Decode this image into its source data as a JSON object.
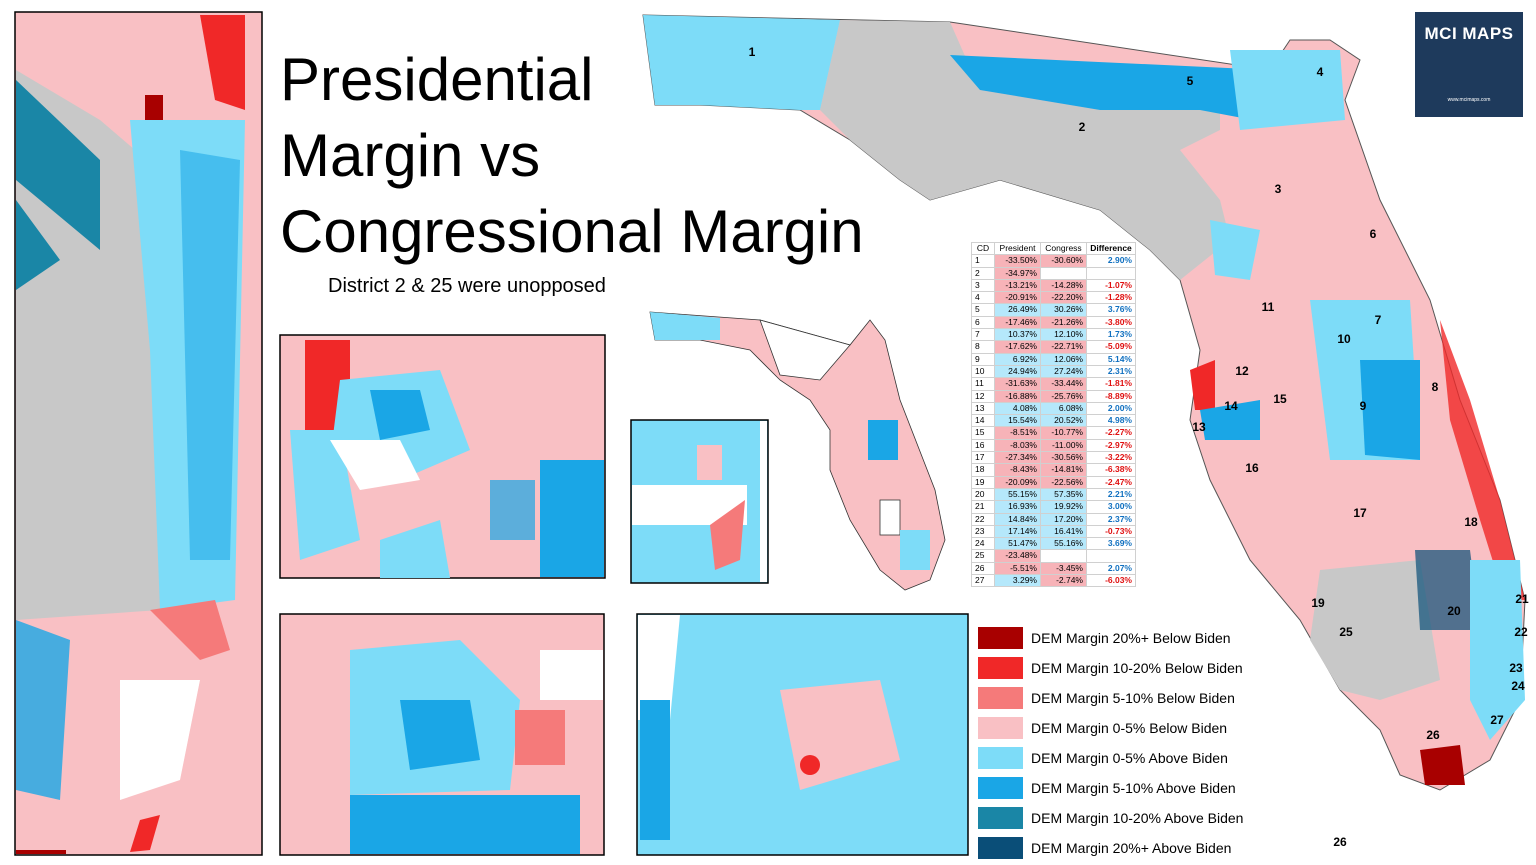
{
  "header": {
    "title_lines": [
      "Presidential",
      "Margin vs",
      "Congressional Margin"
    ],
    "subtitle": "District 2 & 25 were unopposed"
  },
  "logo": {
    "name": "MCI MAPS",
    "url": "www.mcimaps.com"
  },
  "table": {
    "columns": [
      "CD",
      "President",
      "Congress",
      "Difference"
    ],
    "rows": [
      [
        1,
        "-33.50%",
        "-30.60%",
        "2.90%"
      ],
      [
        2,
        "-34.97%",
        null,
        null
      ],
      [
        3,
        "-13.21%",
        "-14.28%",
        "-1.07%"
      ],
      [
        4,
        "-20.91%",
        "-22.20%",
        "-1.28%"
      ],
      [
        5,
        "26.49%",
        "30.26%",
        "3.76%"
      ],
      [
        6,
        "-17.46%",
        "-21.26%",
        "-3.80%"
      ],
      [
        7,
        "10.37%",
        "12.10%",
        "1.73%"
      ],
      [
        8,
        "-17.62%",
        "-22.71%",
        "-5.09%"
      ],
      [
        9,
        "6.92%",
        "12.06%",
        "5.14%"
      ],
      [
        10,
        "24.94%",
        "27.24%",
        "2.31%"
      ],
      [
        11,
        "-31.63%",
        "-33.44%",
        "-1.81%"
      ],
      [
        12,
        "-16.88%",
        "-25.76%",
        "-8.89%"
      ],
      [
        13,
        "4.08%",
        "6.08%",
        "2.00%"
      ],
      [
        14,
        "15.54%",
        "20.52%",
        "4.98%"
      ],
      [
        15,
        "-8.51%",
        "-10.77%",
        "-2.27%"
      ],
      [
        16,
        "-8.03%",
        "-11.00%",
        "-2.97%"
      ],
      [
        17,
        "-27.34%",
        "-30.56%",
        "-3.22%"
      ],
      [
        18,
        "-8.43%",
        "-14.81%",
        "-6.38%"
      ],
      [
        19,
        "-20.09%",
        "-22.56%",
        "-2.47%"
      ],
      [
        20,
        "55.15%",
        "57.35%",
        "2.21%"
      ],
      [
        21,
        "16.93%",
        "19.92%",
        "3.00%"
      ],
      [
        22,
        "14.84%",
        "17.20%",
        "2.37%"
      ],
      [
        23,
        "17.14%",
        "16.41%",
        "-0.73%"
      ],
      [
        24,
        "51.47%",
        "55.16%",
        "3.69%"
      ],
      [
        25,
        "-23.48%",
        null,
        null
      ],
      [
        26,
        "-5.51%",
        "-3.45%",
        "2.07%"
      ],
      [
        27,
        "3.29%",
        "-2.74%",
        "-6.03%"
      ]
    ]
  },
  "legend": [
    {
      "label": "DEM Margin 20%+ Below Biden",
      "color": "#a80000"
    },
    {
      "label": "DEM Margin 10-20% Below Biden",
      "color": "#f02828"
    },
    {
      "label": "DEM Margin 5-10% Below Biden",
      "color": "#f57a7a"
    },
    {
      "label": "DEM Margin 0-5% Below Biden",
      "color": "#f9c0c4"
    },
    {
      "label": "DEM Margin 0-5% Above Biden",
      "color": "#7ddcf8"
    },
    {
      "label": "DEM Margin 5-10% Above Biden",
      "color": "#1aa6e6"
    },
    {
      "label": "DEM Margin 10-20% Above Biden",
      "color": "#1a86a6"
    },
    {
      "label": "DEM Margin 20%+ Above Biden",
      "color": "#0a4e78"
    }
  ],
  "district_labels": [
    "1",
    "2",
    "3",
    "4",
    "5",
    "6",
    "7",
    "8",
    "9",
    "10",
    "11",
    "12",
    "13",
    "14",
    "15",
    "16",
    "17",
    "18",
    "19",
    "20",
    "21",
    "22",
    "23",
    "24",
    "25",
    "26",
    "27",
    "26"
  ]
}
